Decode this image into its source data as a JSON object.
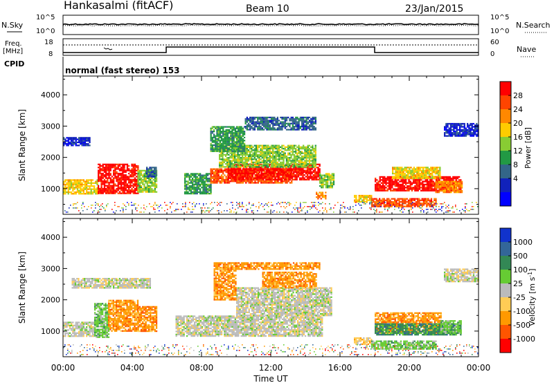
{
  "header": {
    "station": "Hankasalmi (fitACF)",
    "beam": "Beam 10",
    "date": "23/Jan/2015"
  },
  "top_panels": {
    "nsky_label": "N.Sky",
    "nsearch_label": "N.Search",
    "nsky_ticks": [
      "10^5",
      "10^0"
    ],
    "nsky_right_ticks": [
      "10^5",
      "10^0"
    ],
    "freq_label_1": "Freq.",
    "freq_label_2": "[MHz]",
    "freq_ticks": [
      "18",
      "8"
    ],
    "nave_label": "Nave",
    "nave_ticks": [
      "60",
      "0"
    ],
    "cpid_label": "CPID",
    "cpid_text": "normal (fast stereo) 153"
  },
  "chart_data": [
    {
      "type": "heatmap",
      "quantity": "power",
      "ylabel": "Slant Range [km]",
      "ylim": [
        180,
        4600
      ],
      "y_ticks": [
        1000,
        2000,
        3000,
        4000
      ],
      "xlim": [
        0,
        24
      ],
      "x_tick_labels": [
        "00:00",
        "04:00",
        "08:00",
        "12:00",
        "16:00",
        "20:00",
        "00:00"
      ],
      "colorbar": {
        "label": "Power [dB]",
        "ticks": [
          "28",
          "24",
          "20",
          "16",
          "12",
          "8",
          "4"
        ],
        "colors": [
          "#ff0000",
          "#ff4400",
          "#ff8800",
          "#ffcc00",
          "#88cc33",
          "#229944",
          "#336688",
          "#1122bb",
          "#0000ff"
        ]
      },
      "regions": [
        {
          "t0": 0.0,
          "t1": 2.0,
          "r0": 850,
          "r1": 1300,
          "level": 3
        },
        {
          "t0": 2.0,
          "t1": 4.3,
          "r0": 850,
          "r1": 1800,
          "level": 0
        },
        {
          "t0": 4.3,
          "t1": 5.4,
          "r0": 900,
          "r1": 1600,
          "level": 4
        },
        {
          "t0": 4.8,
          "t1": 5.4,
          "r0": 1400,
          "r1": 1700,
          "level": 6
        },
        {
          "t0": 0.0,
          "t1": 1.5,
          "r0": 2400,
          "r1": 2650,
          "level": 7
        },
        {
          "t0": 7.0,
          "t1": 8.5,
          "r0": 850,
          "r1": 1500,
          "level": 5
        },
        {
          "t0": 8.5,
          "t1": 13.2,
          "r0": 1200,
          "r1": 1650,
          "level": 1
        },
        {
          "t0": 9.5,
          "t1": 14.8,
          "r0": 1300,
          "r1": 1800,
          "level": 0
        },
        {
          "t0": 14.8,
          "t1": 15.6,
          "r0": 1050,
          "r1": 1500,
          "level": 4
        },
        {
          "t0": 14.6,
          "t1": 15.2,
          "r0": 700,
          "r1": 900,
          "level": 2
        },
        {
          "t0": 9.0,
          "t1": 14.6,
          "r0": 1700,
          "r1": 2400,
          "level": 4
        },
        {
          "t0": 8.5,
          "t1": 10.5,
          "r0": 2200,
          "r1": 3000,
          "level": 5
        },
        {
          "t0": 10.5,
          "t1": 14.6,
          "r0": 2900,
          "r1": 3300,
          "level": 6
        },
        {
          "t0": 16.8,
          "t1": 17.8,
          "r0": 600,
          "r1": 800,
          "level": 3
        },
        {
          "t0": 17.8,
          "t1": 21.5,
          "r0": 450,
          "r1": 700,
          "level": 1
        },
        {
          "t0": 18.0,
          "t1": 23.0,
          "r0": 950,
          "r1": 1400,
          "level": 0
        },
        {
          "t0": 19.0,
          "t1": 21.8,
          "r0": 1350,
          "r1": 1700,
          "level": 3
        },
        {
          "t0": 21.5,
          "t1": 23.0,
          "r0": 900,
          "r1": 1250,
          "level": 2
        },
        {
          "t0": 22.0,
          "t1": 24.0,
          "r0": 2700,
          "r1": 3100,
          "level": 7
        }
      ]
    },
    {
      "type": "heatmap",
      "quantity": "velocity",
      "ylabel": "Slant Range [km]",
      "ylim": [
        180,
        4600
      ],
      "y_ticks": [
        1000,
        2000,
        3000,
        4000
      ],
      "xlim": [
        0,
        24
      ],
      "x_tick_labels": [
        "00:00",
        "04:00",
        "08:00",
        "12:00",
        "16:00",
        "20:00",
        "00:00"
      ],
      "xlabel": "Time UT",
      "colorbar": {
        "label": "Velocity [m s",
        "label_sup": "-1",
        "label_end": "]",
        "ticks": [
          "1000",
          "500",
          "100",
          "25",
          "-25",
          "-100",
          "-500",
          "-1000"
        ],
        "colors": [
          "#1133cc",
          "#336699",
          "#338855",
          "#66cc33",
          "#bbbbbb",
          "#ffcc55",
          "#ff9900",
          "#ff5500",
          "#ff0000"
        ]
      },
      "regions": [
        {
          "t0": 0.0,
          "t1": 1.8,
          "r0": 850,
          "r1": 1300,
          "level": 4
        },
        {
          "t0": 1.8,
          "t1": 2.6,
          "r0": 800,
          "r1": 1900,
          "level": 3
        },
        {
          "t0": 2.6,
          "t1": 4.3,
          "r0": 1000,
          "r1": 2000,
          "level": 6
        },
        {
          "t0": 4.3,
          "t1": 5.4,
          "r0": 1000,
          "r1": 1800,
          "level": 6
        },
        {
          "t0": 0.5,
          "t1": 5.0,
          "r0": 2400,
          "r1": 2700,
          "level": 4
        },
        {
          "t0": 6.5,
          "t1": 8.5,
          "r0": 850,
          "r1": 1500,
          "level": 4
        },
        {
          "t0": 8.5,
          "t1": 15.0,
          "r0": 850,
          "r1": 1500,
          "level": 4
        },
        {
          "t0": 10.0,
          "t1": 15.5,
          "r0": 1500,
          "r1": 2400,
          "level": 4
        },
        {
          "t0": 8.7,
          "t1": 10.0,
          "r0": 2000,
          "r1": 3000,
          "level": 6
        },
        {
          "t0": 11.5,
          "t1": 14.6,
          "r0": 2400,
          "r1": 2900,
          "level": 6
        },
        {
          "t0": 8.7,
          "t1": 14.8,
          "r0": 3000,
          "r1": 3200,
          "level": 6
        },
        {
          "t0": 16.8,
          "t1": 17.8,
          "r0": 600,
          "r1": 800,
          "level": 5
        },
        {
          "t0": 17.8,
          "t1": 21.5,
          "r0": 450,
          "r1": 700,
          "level": 3
        },
        {
          "t0": 18.0,
          "t1": 21.8,
          "r0": 950,
          "r1": 1600,
          "level": 6
        },
        {
          "t0": 18.0,
          "t1": 23.0,
          "r0": 900,
          "r1": 1250,
          "level": 2
        },
        {
          "t0": 21.8,
          "t1": 23.0,
          "r0": 950,
          "r1": 1350,
          "level": 3
        },
        {
          "t0": 22.0,
          "t1": 24.0,
          "r0": 2600,
          "r1": 3000,
          "level": 4
        }
      ]
    }
  ]
}
